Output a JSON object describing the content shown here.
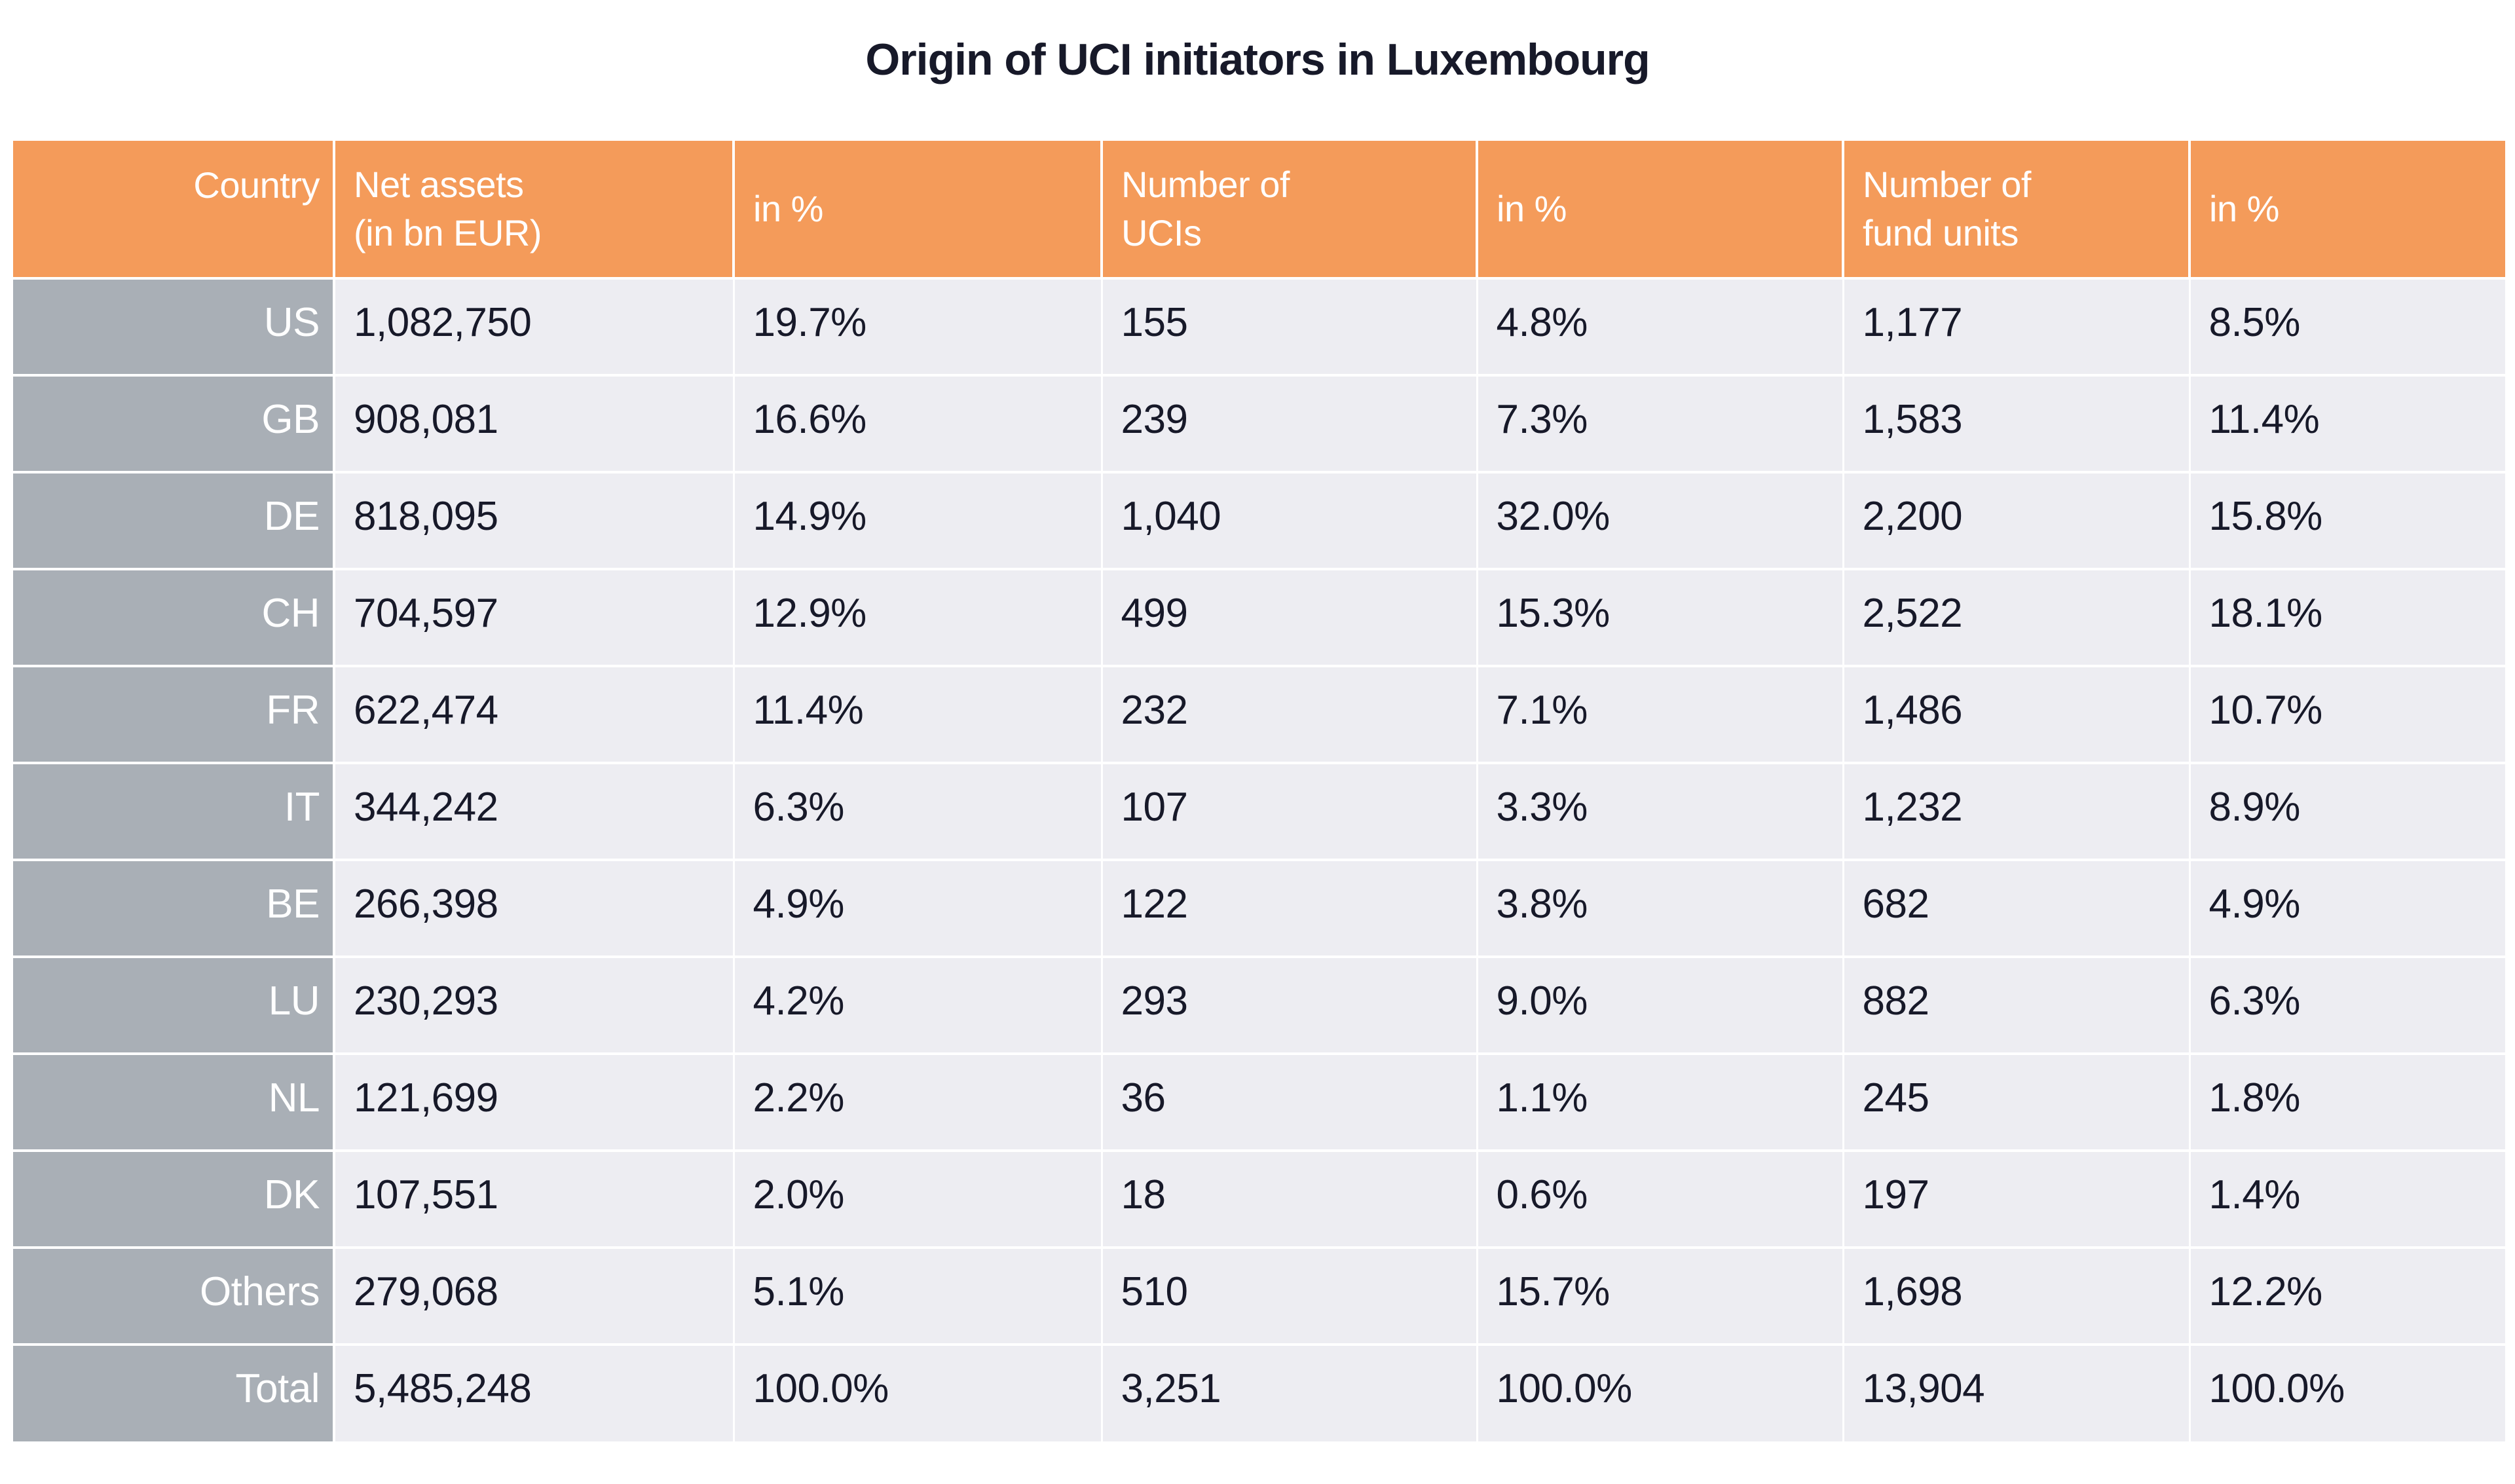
{
  "title": "Origin of UCI initiators in Luxembourg",
  "colors": {
    "header_bg": "#F49B5A",
    "row_label_bg": "#A9AFB6",
    "cell_bg": "#EDEDF2",
    "text_dark": "#171929",
    "text_light": "#FFFFFF"
  },
  "table": {
    "header": [
      {
        "lines": [
          "Country"
        ]
      },
      {
        "lines": [
          "Net assets",
          "(in bn EUR)"
        ]
      },
      {
        "lines": [
          "in %"
        ]
      },
      {
        "lines": [
          "Number of",
          "UCIs"
        ]
      },
      {
        "lines": [
          "in %"
        ]
      },
      {
        "lines": [
          "Number of",
          "fund units"
        ]
      },
      {
        "lines": [
          "in %"
        ]
      }
    ]
  },
  "chart_data": {
    "type": "table",
    "title": "Origin of UCI initiators in Luxembourg",
    "columns": [
      "Country",
      "Net assets (in bn EUR)",
      "in %",
      "Number of UCIs",
      "in %",
      "Number of fund units",
      "in %"
    ],
    "rows": [
      [
        "US",
        "1,082,750",
        "19.7%",
        "155",
        "4.8%",
        "1,177",
        "8.5%"
      ],
      [
        "GB",
        "908,081",
        "16.6%",
        "239",
        "7.3%",
        "1,583",
        "11.4%"
      ],
      [
        "DE",
        "818,095",
        "14.9%",
        "1,040",
        "32.0%",
        "2,200",
        "15.8%"
      ],
      [
        "CH",
        "704,597",
        "12.9%",
        "499",
        "15.3%",
        "2,522",
        "18.1%"
      ],
      [
        "FR",
        "622,474",
        "11.4%",
        "232",
        "7.1%",
        "1,486",
        "10.7%"
      ],
      [
        "IT",
        "344,242",
        "6.3%",
        "107",
        "3.3%",
        "1,232",
        "8.9%"
      ],
      [
        "BE",
        "266,398",
        "4.9%",
        "122",
        "3.8%",
        "682",
        "4.9%"
      ],
      [
        "LU",
        "230,293",
        "4.2%",
        "293",
        "9.0%",
        "882",
        "6.3%"
      ],
      [
        "NL",
        "121,699",
        "2.2%",
        "36",
        "1.1%",
        "245",
        "1.8%"
      ],
      [
        "DK",
        "107,551",
        "2.0%",
        "18",
        "0.6%",
        "197",
        "1.4%"
      ],
      [
        "Others",
        "279,068",
        "5.1%",
        "510",
        "15.7%",
        "1,698",
        "12.2%"
      ],
      [
        "Total",
        "5,485,248",
        "100.0%",
        "3,251",
        "100.0%",
        "13,904",
        "100.0%"
      ]
    ]
  }
}
